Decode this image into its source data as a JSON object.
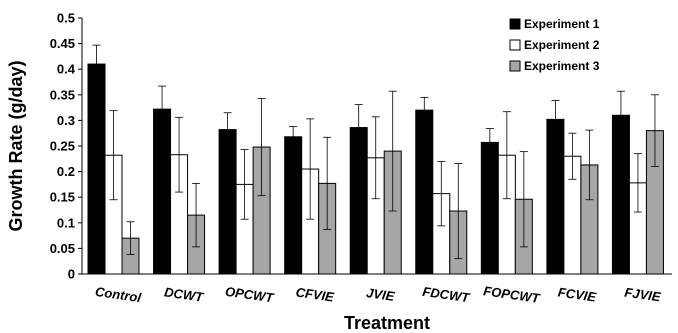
{
  "chart_data": {
    "type": "bar",
    "title": "",
    "xlabel": "Treatment",
    "ylabel": "Growth Rate (g/day)",
    "ylim": [
      0,
      0.5
    ],
    "yticks": [
      "0",
      "0.05",
      "0.1",
      "0.15",
      "0.2",
      "0.25",
      "0.3",
      "0.35",
      "0.4",
      "0.45",
      "0.5"
    ],
    "categories": [
      "Control",
      "DCWT",
      "OPCWT",
      "CFVIE",
      "JVIE",
      "FDCWT",
      "FOPCWT",
      "FCVIE",
      "FJVIE"
    ],
    "series": [
      {
        "name": "Experiment 1",
        "color": "#000000",
        "values": [
          0.41,
          0.322,
          0.282,
          0.268,
          0.286,
          0.32,
          0.257,
          0.302,
          0.31
        ],
        "errors": [
          0.037,
          0.045,
          0.033,
          0.02,
          0.045,
          0.025,
          0.027,
          0.037,
          0.047
        ]
      },
      {
        "name": "Experiment 2",
        "color": "#ffffff",
        "values": [
          0.232,
          0.233,
          0.175,
          0.205,
          0.227,
          0.157,
          0.232,
          0.23,
          0.178
        ],
        "errors": [
          0.087,
          0.073,
          0.068,
          0.098,
          0.08,
          0.063,
          0.085,
          0.045,
          0.057
        ]
      },
      {
        "name": "Experiment 3",
        "color": "#a6a6a6",
        "values": [
          0.07,
          0.115,
          0.248,
          0.177,
          0.24,
          0.123,
          0.146,
          0.213,
          0.28
        ],
        "errors": [
          0.032,
          0.062,
          0.095,
          0.09,
          0.117,
          0.093,
          0.093,
          0.068,
          0.07
        ]
      }
    ],
    "legend": "top-right",
    "grid": false
  }
}
